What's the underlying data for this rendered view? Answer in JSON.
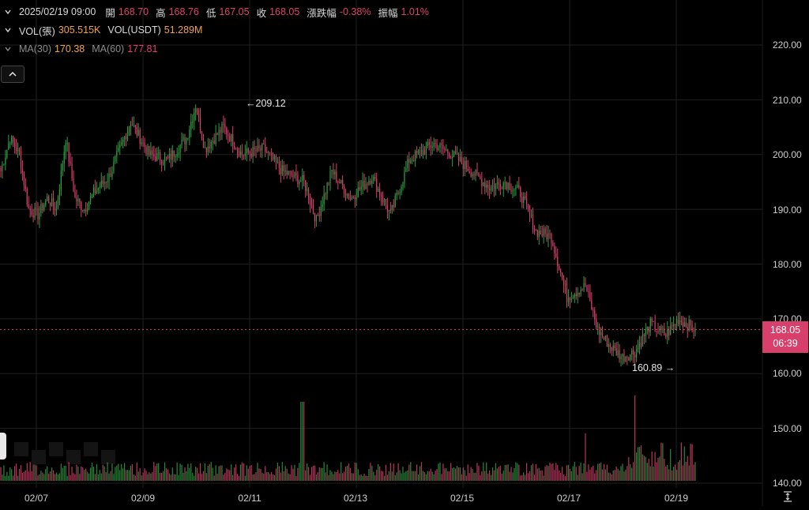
{
  "header": {
    "row1": {
      "datetime": "2025/02/19 09:00",
      "open_label": "開",
      "open": "168.70",
      "high_label": "高",
      "high": "168.76",
      "low_label": "低",
      "low": "167.05",
      "close_label": "收",
      "close": "168.05",
      "change_label": "漲跌幅",
      "change": "-0.38%",
      "amp_label": "振幅",
      "amp": "1.01%"
    },
    "row2": {
      "vol_contracts_label": "VOL(張)",
      "vol_contracts": "305.515K",
      "vol_usdt_label": "VOL(USDT)",
      "vol_usdt": "51.289M"
    },
    "row3": {
      "ma30_label": "MA(30)",
      "ma30": "170.38",
      "ma60_label": "MA(60)",
      "ma60": "177.81"
    }
  },
  "badge": {
    "price": "168.05",
    "countdown": "06:39"
  },
  "annotations": {
    "high": "209.12",
    "low": "160.89"
  },
  "y_ticks": [
    "220.00",
    "210.00",
    "200.00",
    "190.00",
    "180.00",
    "170.00",
    "160.00",
    "150.00",
    "140.00"
  ],
  "x_ticks": [
    "02/07",
    "02/09",
    "02/11",
    "02/13",
    "02/15",
    "02/17",
    "02/19"
  ],
  "colors": {
    "up": "#2ea043",
    "down": "#d8406b",
    "grid": "#1f1f1f",
    "last_line": "#d8406b"
  },
  "chart_data": {
    "type": "candlestick",
    "price_ylim": [
      140,
      220
    ],
    "last_price": 168.05,
    "marked_high": 209.12,
    "marked_low": 160.89,
    "close_path_anchors": [
      [
        0,
        197
      ],
      [
        6,
        203
      ],
      [
        12,
        200
      ],
      [
        18,
        190
      ],
      [
        24,
        189
      ],
      [
        30,
        192
      ],
      [
        36,
        190
      ],
      [
        42,
        203
      ],
      [
        48,
        192
      ],
      [
        54,
        190
      ],
      [
        60,
        193
      ],
      [
        70,
        196
      ],
      [
        84,
        206
      ],
      [
        96,
        200
      ],
      [
        108,
        199
      ],
      [
        120,
        203
      ],
      [
        126,
        209
      ],
      [
        132,
        201
      ],
      [
        144,
        205
      ],
      [
        156,
        200
      ],
      [
        170,
        201
      ],
      [
        182,
        197
      ],
      [
        196,
        195
      ],
      [
        204,
        188
      ],
      [
        214,
        197
      ],
      [
        226,
        192
      ],
      [
        240,
        196
      ],
      [
        252,
        189
      ],
      [
        264,
        199
      ],
      [
        280,
        202
      ],
      [
        292,
        200
      ],
      [
        304,
        197
      ],
      [
        316,
        194
      ],
      [
        326,
        195
      ],
      [
        336,
        193
      ],
      [
        346,
        186
      ],
      [
        356,
        185
      ],
      [
        366,
        174
      ],
      [
        378,
        176
      ],
      [
        386,
        168
      ],
      [
        394,
        165
      ],
      [
        402,
        163
      ],
      [
        410,
        164
      ],
      [
        420,
        169
      ],
      [
        430,
        167
      ],
      [
        438,
        170
      ],
      [
        449,
        168.05
      ]
    ],
    "volume_note": "relative bars; peaks near 02/13 and 02/19"
  }
}
